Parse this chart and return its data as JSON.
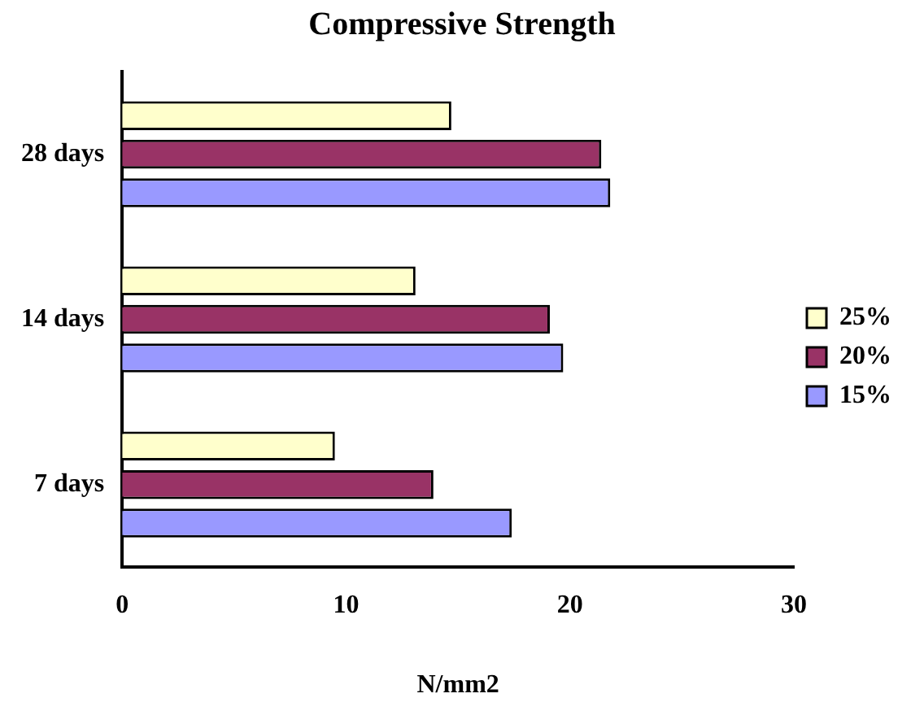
{
  "chart_data": {
    "type": "bar",
    "orientation": "horizontal",
    "title": "Compressive Strength",
    "xlabel": "N/mm2",
    "categories": [
      "28 days",
      "14 days",
      "7 days"
    ],
    "series": [
      {
        "name": "25%",
        "color": "#ffffcc",
        "values": [
          14.7,
          13.1,
          9.5
        ]
      },
      {
        "name": "20%",
        "color": "#993366",
        "values": [
          21.4,
          19.1,
          13.9
        ]
      },
      {
        "name": "15%",
        "color": "#9999ff",
        "values": [
          21.8,
          19.7,
          17.4
        ]
      }
    ],
    "xlim": [
      0,
      30
    ],
    "xticks": [
      0,
      10,
      20,
      30
    ],
    "grid": false,
    "legend": "right"
  }
}
